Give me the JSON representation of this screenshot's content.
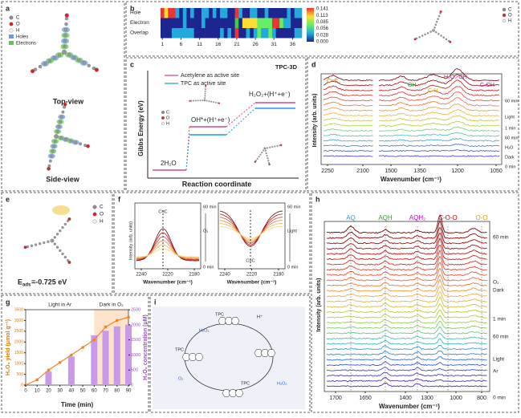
{
  "panels": {
    "a": {
      "label": "a",
      "legend": [
        "C",
        "O",
        "H",
        "Holes",
        "Electrons"
      ],
      "views": [
        "Top-view",
        "Side-view"
      ]
    },
    "b": {
      "label": "b",
      "rows": [
        "Hole",
        "Electron",
        "Overlap"
      ],
      "xticks": [
        1,
        6,
        11,
        16,
        21,
        26,
        31,
        36
      ],
      "colorbar": [
        "0.141",
        "0.113",
        "0.085",
        "0.056",
        "0.028",
        "0.000"
      ],
      "legend": [
        "C",
        "O",
        "H"
      ]
    },
    "c": {
      "label": "c",
      "title": "TPC-3D",
      "legend": [
        "Acetylene as  active site",
        "TPC as active site"
      ],
      "ylabel": "Gibbs Energy (eV)",
      "xlabel": "Reaction coordinate",
      "states": [
        "2H₂O",
        "OH*+(H⁺+e⁻)",
        "H₂O₂+(H⁺+e⁻)"
      ],
      "atoms": [
        "C",
        "O",
        "H"
      ]
    },
    "d": {
      "label": "d",
      "peaks": [
        "C≡C",
        "OH",
        "C-H",
        "H₂O₂-OH",
        "C-OH"
      ],
      "ylabel": "Intensity (arb. units)",
      "xlabel": "Wavenumber (cm⁻¹)",
      "xticks": [
        2250,
        2100,
        1500,
        1350,
        1200,
        1050
      ],
      "side": [
        "60 min",
        "Light",
        "1 min",
        "60 min",
        "H₂O",
        "Dark",
        "0 min"
      ]
    },
    "e": {
      "label": "e",
      "legend": [
        "C",
        "O",
        "H"
      ],
      "energy_symbol": "E",
      "energy_sub": "ads",
      "energy": "=-0.725 eV"
    },
    "f": {
      "label": "f",
      "peak": [
        "C≡C",
        "C≡C"
      ],
      "ylabel": "Intensity (arb. units)",
      "xlabel": "Wavenumber (cm⁻¹)",
      "xticks_left": [
        2240,
        2220,
        2180
      ],
      "xticks_right": [
        2240,
        2220,
        2180
      ],
      "side_left": [
        "60 min",
        "O₂",
        "0 min"
      ],
      "side_right": [
        "60 min",
        "Light",
        "0 min"
      ]
    },
    "g": {
      "label": "g",
      "phases": [
        "Light in Ar",
        "Dark in O₂"
      ],
      "ylabel": "H₂O₂ yield (μmol g⁻¹)",
      "y2label": "H₂O₂ concentration (μM)",
      "xlabel": "Time (min)",
      "time": [
        0,
        10,
        20,
        30,
        40,
        50,
        60,
        70,
        80,
        90
      ],
      "yield": [
        0,
        250,
        700,
        1050,
        1400,
        1750,
        2100,
        2700,
        3000,
        3150
      ],
      "bar_time": [
        20,
        40,
        60,
        70,
        80,
        90
      ],
      "concentration": [
        450,
        950,
        1650,
        1800,
        1950,
        2000
      ],
      "xticks": [
        0,
        10,
        20,
        30,
        40,
        50,
        60,
        70,
        80,
        90
      ],
      "yticks": [
        0,
        500,
        1000,
        1500,
        2000,
        2500,
        3000,
        3500
      ],
      "y2ticks": [
        0,
        500,
        1000,
        1500,
        2000,
        2500
      ]
    },
    "h": {
      "label": "h",
      "peaks": [
        "AQ",
        "AQH",
        "AQH₂",
        "C-O-O",
        "O-O"
      ],
      "ylabel": "Intensity (arb. units)",
      "xlabel": "Wavenumber (cm⁻¹)",
      "xticks": [
        1700,
        1650,
        1400,
        1300,
        1000,
        800
      ],
      "side": [
        "60 min",
        "O₂",
        "Dark",
        "1 min",
        "60 min",
        "Ar",
        "Light",
        "0 min"
      ]
    },
    "i": {
      "label": "i",
      "species": [
        "H₂O₂",
        "H⁺",
        "O₂",
        "H₂O₂",
        "TPC",
        "TPC",
        "TPC"
      ]
    }
  }
}
